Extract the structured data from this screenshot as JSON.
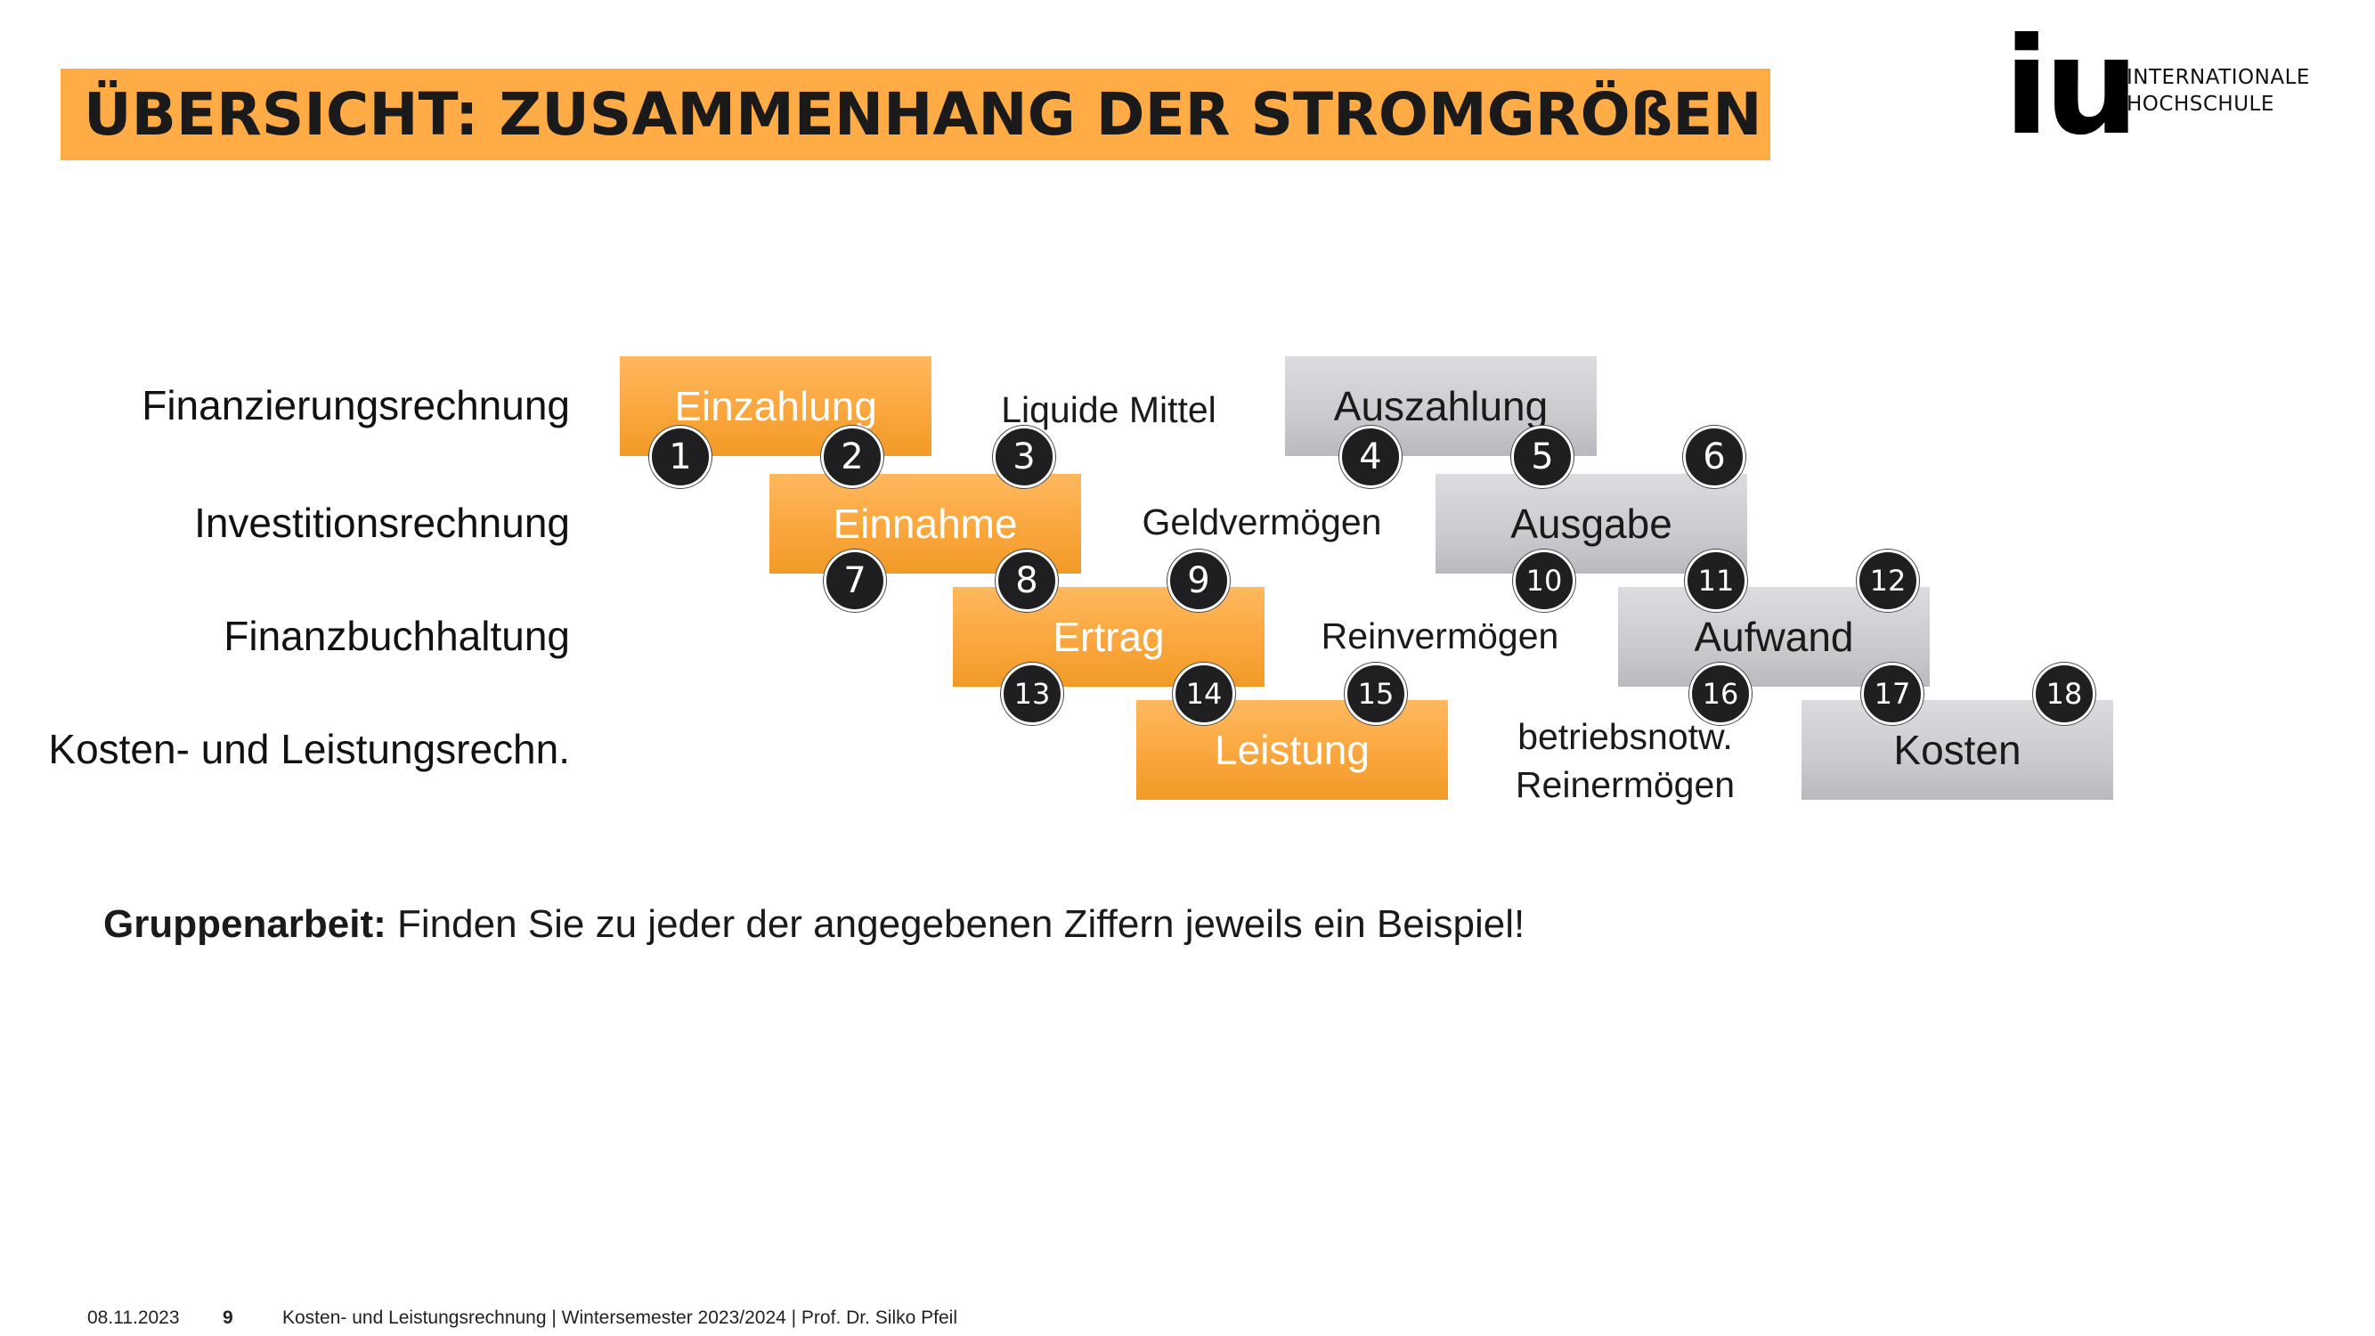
{
  "title": "ÜBERSICHT: ZUSAMMENHANG DER STROMGRÖßEN",
  "logo": {
    "mark": "iu",
    "line1": "INTERNATIONALE",
    "line2": "HOCHSCHULE"
  },
  "rows": [
    {
      "label": "Finanzierungsrechnung",
      "left": "Einzahlung",
      "middle": "Liquide Mittel",
      "right": "Auszahlung"
    },
    {
      "label": "Investitionsrechnung",
      "left": "Einnahme",
      "middle": "Geldvermögen",
      "right": "Ausgabe"
    },
    {
      "label": "Finanzbuchhaltung",
      "left": "Ertrag",
      "middle": "Reinvermögen",
      "right": "Aufwand"
    },
    {
      "label": "Kosten- und Leistungsrechn.",
      "left": "Leistung",
      "middle_line1": "betriebsnotw.",
      "middle_line2": "Reinermögen",
      "right": "Kosten"
    }
  ],
  "numbers": [
    "1",
    "2",
    "3",
    "4",
    "5",
    "6",
    "7",
    "8",
    "9",
    "10",
    "11",
    "12",
    "13",
    "14",
    "15",
    "16",
    "17",
    "18"
  ],
  "task": {
    "bold": "Gruppenarbeit:",
    "text": " Finden Sie zu jeder der angegebenen Ziffern jeweils ein Beispiel!"
  },
  "footer": {
    "date": "08.11.2023",
    "page": "9",
    "course": "Kosten- und Leistungsrechnung | Wintersemester 2023/2024 | Prof. Dr. Silko Pfeil"
  },
  "colors": {
    "accent": "#ffac47",
    "box_orange": "#f9a53b",
    "box_grey": "#cacacf",
    "circle": "#1f1f22"
  }
}
